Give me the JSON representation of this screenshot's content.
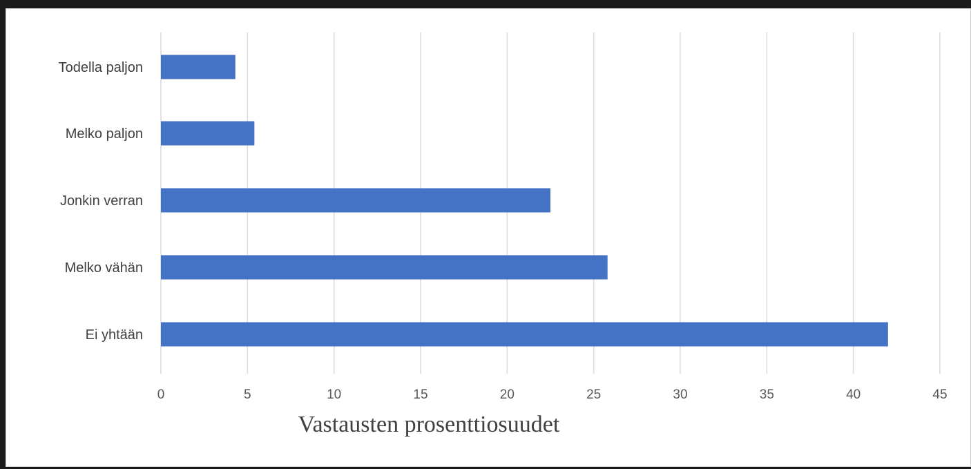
{
  "chart_data": {
    "type": "bar",
    "orientation": "horizontal",
    "categories": [
      "Todella paljon",
      "Melko paljon",
      "Jonkin verran",
      "Melko vähän",
      "Ei yhtään"
    ],
    "values": [
      4.3,
      5.4,
      22.5,
      25.8,
      42.0
    ],
    "xlabel": "Vastausten prosenttiosuudet",
    "xlim": [
      0,
      45
    ],
    "xticks": [
      0,
      5,
      10,
      15,
      20,
      25,
      30,
      35,
      40,
      45
    ],
    "grid": "vertical",
    "legend": "none",
    "bar_color": "#4472c4",
    "grid_color": "#d9d9d9"
  }
}
